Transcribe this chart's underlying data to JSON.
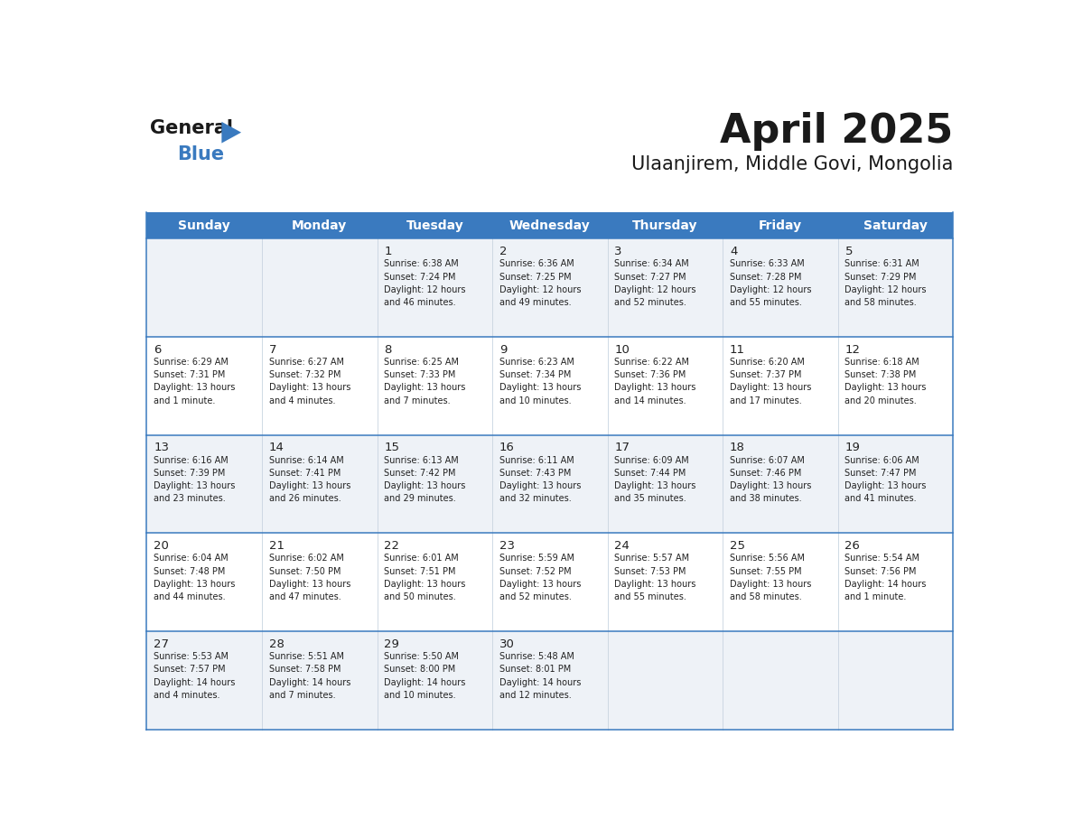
{
  "title": "April 2025",
  "subtitle": "Ulaanjirem, Middle Govi, Mongolia",
  "days_of_week": [
    "Sunday",
    "Monday",
    "Tuesday",
    "Wednesday",
    "Thursday",
    "Friday",
    "Saturday"
  ],
  "header_bg_color": "#3a7abf",
  "header_text_color": "#ffffff",
  "cell_bg_even": "#eef2f7",
  "cell_bg_odd": "#ffffff",
  "row_line_color": "#3a7abf",
  "text_color": "#222222",
  "calendar_data": [
    [
      {
        "day": "",
        "sunrise": "",
        "sunset": "",
        "daylight": ""
      },
      {
        "day": "",
        "sunrise": "",
        "sunset": "",
        "daylight": ""
      },
      {
        "day": "1",
        "sunrise": "6:38 AM",
        "sunset": "7:24 PM",
        "daylight": "12 hours and 46 minutes."
      },
      {
        "day": "2",
        "sunrise": "6:36 AM",
        "sunset": "7:25 PM",
        "daylight": "12 hours and 49 minutes."
      },
      {
        "day": "3",
        "sunrise": "6:34 AM",
        "sunset": "7:27 PM",
        "daylight": "12 hours and 52 minutes."
      },
      {
        "day": "4",
        "sunrise": "6:33 AM",
        "sunset": "7:28 PM",
        "daylight": "12 hours and 55 minutes."
      },
      {
        "day": "5",
        "sunrise": "6:31 AM",
        "sunset": "7:29 PM",
        "daylight": "12 hours and 58 minutes."
      }
    ],
    [
      {
        "day": "6",
        "sunrise": "6:29 AM",
        "sunset": "7:31 PM",
        "daylight": "13 hours and 1 minute."
      },
      {
        "day": "7",
        "sunrise": "6:27 AM",
        "sunset": "7:32 PM",
        "daylight": "13 hours and 4 minutes."
      },
      {
        "day": "8",
        "sunrise": "6:25 AM",
        "sunset": "7:33 PM",
        "daylight": "13 hours and 7 minutes."
      },
      {
        "day": "9",
        "sunrise": "6:23 AM",
        "sunset": "7:34 PM",
        "daylight": "13 hours and 10 minutes."
      },
      {
        "day": "10",
        "sunrise": "6:22 AM",
        "sunset": "7:36 PM",
        "daylight": "13 hours and 14 minutes."
      },
      {
        "day": "11",
        "sunrise": "6:20 AM",
        "sunset": "7:37 PM",
        "daylight": "13 hours and 17 minutes."
      },
      {
        "day": "12",
        "sunrise": "6:18 AM",
        "sunset": "7:38 PM",
        "daylight": "13 hours and 20 minutes."
      }
    ],
    [
      {
        "day": "13",
        "sunrise": "6:16 AM",
        "sunset": "7:39 PM",
        "daylight": "13 hours and 23 minutes."
      },
      {
        "day": "14",
        "sunrise": "6:14 AM",
        "sunset": "7:41 PM",
        "daylight": "13 hours and 26 minutes."
      },
      {
        "day": "15",
        "sunrise": "6:13 AM",
        "sunset": "7:42 PM",
        "daylight": "13 hours and 29 minutes."
      },
      {
        "day": "16",
        "sunrise": "6:11 AM",
        "sunset": "7:43 PM",
        "daylight": "13 hours and 32 minutes."
      },
      {
        "day": "17",
        "sunrise": "6:09 AM",
        "sunset": "7:44 PM",
        "daylight": "13 hours and 35 minutes."
      },
      {
        "day": "18",
        "sunrise": "6:07 AM",
        "sunset": "7:46 PM",
        "daylight": "13 hours and 38 minutes."
      },
      {
        "day": "19",
        "sunrise": "6:06 AM",
        "sunset": "7:47 PM",
        "daylight": "13 hours and 41 minutes."
      }
    ],
    [
      {
        "day": "20",
        "sunrise": "6:04 AM",
        "sunset": "7:48 PM",
        "daylight": "13 hours and 44 minutes."
      },
      {
        "day": "21",
        "sunrise": "6:02 AM",
        "sunset": "7:50 PM",
        "daylight": "13 hours and 47 minutes."
      },
      {
        "day": "22",
        "sunrise": "6:01 AM",
        "sunset": "7:51 PM",
        "daylight": "13 hours and 50 minutes."
      },
      {
        "day": "23",
        "sunrise": "5:59 AM",
        "sunset": "7:52 PM",
        "daylight": "13 hours and 52 minutes."
      },
      {
        "day": "24",
        "sunrise": "5:57 AM",
        "sunset": "7:53 PM",
        "daylight": "13 hours and 55 minutes."
      },
      {
        "day": "25",
        "sunrise": "5:56 AM",
        "sunset": "7:55 PM",
        "daylight": "13 hours and 58 minutes."
      },
      {
        "day": "26",
        "sunrise": "5:54 AM",
        "sunset": "7:56 PM",
        "daylight": "14 hours and 1 minute."
      }
    ],
    [
      {
        "day": "27",
        "sunrise": "5:53 AM",
        "sunset": "7:57 PM",
        "daylight": "14 hours and 4 minutes."
      },
      {
        "day": "28",
        "sunrise": "5:51 AM",
        "sunset": "7:58 PM",
        "daylight": "14 hours and 7 minutes."
      },
      {
        "day": "29",
        "sunrise": "5:50 AM",
        "sunset": "8:00 PM",
        "daylight": "14 hours and 10 minutes."
      },
      {
        "day": "30",
        "sunrise": "5:48 AM",
        "sunset": "8:01 PM",
        "daylight": "14 hours and 12 minutes."
      },
      {
        "day": "",
        "sunrise": "",
        "sunset": "",
        "daylight": ""
      },
      {
        "day": "",
        "sunrise": "",
        "sunset": "",
        "daylight": ""
      },
      {
        "day": "",
        "sunrise": "",
        "sunset": "",
        "daylight": ""
      }
    ]
  ]
}
